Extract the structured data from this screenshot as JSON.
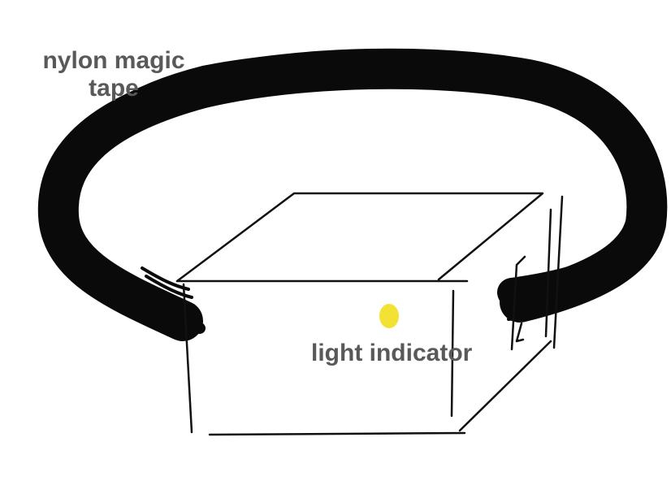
{
  "labels": {
    "tape_line1": "nylon magic",
    "tape_line2": "tape",
    "indicator": "light indicator"
  },
  "colors": {
    "background": "#ffffff",
    "tape": "#0a0a0a",
    "box_outline": "#111111",
    "label_text": "#595959",
    "indicator_light": "#f2e233"
  }
}
